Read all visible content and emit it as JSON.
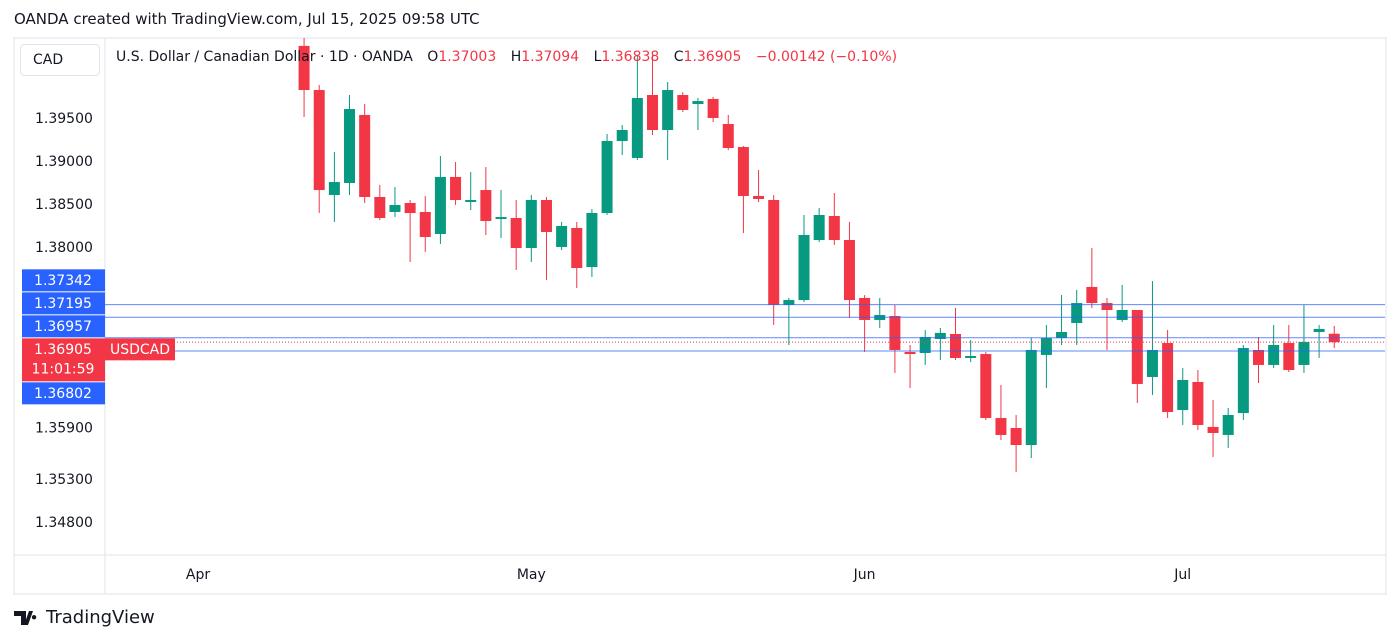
{
  "chart_data": {
    "type": "candlestick",
    "attribution": "OANDA created with TradingView.com, Jul 15, 2025 09:58 UTC",
    "currency": "CAD",
    "title": "U.S. Dollar / Canadian Dollar · 1D · OANDA",
    "ohlc_letters": [
      "O",
      "H",
      "L",
      "C"
    ],
    "change_label": "−0.00142 (−0.10%)",
    "countdown": "11:01:59",
    "brand": "TradingView",
    "up_color": "#089981",
    "down_color": "#f23645",
    "xlim": [
      -6.14,
      78.35
    ],
    "ylim": [
      1.3443,
      1.40442
    ],
    "xticks": [
      {
        "value": 0,
        "label": "Apr"
      },
      {
        "value": 22,
        "label": "May"
      },
      {
        "value": 44,
        "label": "Jun"
      },
      {
        "value": 65,
        "label": "Jul"
      }
    ],
    "yticks": [
      {
        "value": 1.395,
        "label": "1.39500"
      },
      {
        "value": 1.39,
        "label": "1.39000"
      },
      {
        "value": 1.385,
        "label": "1.38500"
      },
      {
        "value": 1.38,
        "label": "1.38000"
      },
      {
        "value": 1.359,
        "label": "1.35900"
      },
      {
        "value": 1.353,
        "label": "1.35300"
      },
      {
        "value": 1.348,
        "label": "1.34800"
      }
    ],
    "price_lines": [
      {
        "value": 1.37342,
        "color": "#2962ff"
      },
      {
        "value": 1.37195,
        "color": "#2962ff"
      },
      {
        "value": 1.36957,
        "color": "#2962ff"
      },
      {
        "value": 1.36802,
        "color": "#2962ff"
      }
    ],
    "series": [
      {
        "name": "USDCAD",
        "x": [
          7,
          8,
          9,
          10,
          11,
          12,
          13,
          14,
          15,
          16,
          17,
          18,
          19,
          20,
          21,
          22,
          23,
          24,
          25,
          26,
          27,
          28,
          29,
          30,
          31,
          32,
          33,
          34,
          35,
          36,
          37,
          38,
          39,
          40,
          41,
          42,
          43,
          44,
          45,
          46,
          47,
          48,
          49,
          50,
          51,
          52,
          53,
          54,
          55,
          56,
          57,
          58,
          59,
          60,
          61,
          62,
          63,
          64,
          65,
          66,
          67,
          68,
          69,
          70,
          71,
          72,
          73,
          74,
          75
        ],
        "open": [
          1.4035,
          1.39837,
          1.38616,
          1.38756,
          1.39547,
          1.38593,
          1.38419,
          1.38523,
          1.38419,
          1.38163,
          1.38826,
          1.38535,
          1.38674,
          1.38337,
          1.38349,
          1.38,
          1.38558,
          1.38012,
          1.38233,
          1.37779,
          1.38407,
          1.39244,
          1.39047,
          1.39779,
          1.39372,
          1.39779,
          1.39674,
          1.39733,
          1.39442,
          1.39174,
          1.38605,
          1.38558,
          1.37337,
          1.37395,
          1.38093,
          1.38372,
          1.38093,
          1.37419,
          1.37163,
          1.37209,
          1.36791,
          1.36779,
          1.36942,
          1.37,
          1.36721,
          1.36767,
          1.36023,
          1.35907,
          1.35709,
          1.36756,
          1.36953,
          1.37128,
          1.37547,
          1.3736,
          1.37163,
          1.37279,
          1.365,
          1.36895,
          1.36116,
          1.36442,
          1.35919,
          1.35826,
          1.36081,
          1.36814,
          1.3664,
          1.36895,
          1.3664,
          1.37023,
          1.37003
        ],
        "high": [
          1.406,
          1.39895,
          1.39116,
          1.39779,
          1.39674,
          1.38733,
          1.38709,
          1.38558,
          1.38605,
          1.3907,
          1.39,
          1.38884,
          1.38942,
          1.38674,
          1.38558,
          1.38616,
          1.38593,
          1.38302,
          1.38302,
          1.38453,
          1.39326,
          1.3943,
          1.40244,
          1.40244,
          1.3993,
          1.39814,
          1.39744,
          1.39756,
          1.39547,
          1.39186,
          1.38907,
          1.38616,
          1.37419,
          1.38384,
          1.38465,
          1.3864,
          1.38302,
          1.37453,
          1.37419,
          1.37337,
          1.36872,
          1.37047,
          1.3707,
          1.37302,
          1.3693,
          1.36791,
          1.36407,
          1.36058,
          1.36953,
          1.37105,
          1.37453,
          1.37512,
          1.38,
          1.37419,
          1.3757,
          1.37279,
          1.37616,
          1.37047,
          1.36605,
          1.36581,
          1.36233,
          1.3614,
          1.36872,
          1.36965,
          1.37105,
          1.37105,
          1.37337,
          1.37105,
          1.37094
        ],
        "low": [
          1.39523,
          1.38407,
          1.38302,
          1.38616,
          1.38523,
          1.38326,
          1.3836,
          1.37837,
          1.37953,
          1.38047,
          1.385,
          1.38442,
          1.38151,
          1.38116,
          1.37744,
          1.37837,
          1.37628,
          1.37977,
          1.37535,
          1.37663,
          1.38384,
          1.39081,
          1.39023,
          1.39314,
          1.39023,
          1.39581,
          1.39372,
          1.39465,
          1.3914,
          1.38174,
          1.38535,
          1.37105,
          1.36872,
          1.37372,
          1.3807,
          1.38035,
          1.37186,
          1.36791,
          1.3707,
          1.36547,
          1.36372,
          1.3664,
          1.36698,
          1.36698,
          1.36674,
          1.36,
          1.35767,
          1.35395,
          1.35558,
          1.36372,
          1.36872,
          1.36872,
          1.37302,
          1.36814,
          1.3714,
          1.36198,
          1.36291,
          1.36023,
          1.35942,
          1.35884,
          1.3557,
          1.35674,
          1.36,
          1.3643,
          1.36605,
          1.36558,
          1.36547,
          1.36721,
          1.36838
        ],
        "close": [
          1.39837,
          1.38674,
          1.38767,
          1.39616,
          1.38593,
          1.38349,
          1.385,
          1.38407,
          1.38128,
          1.38826,
          1.38558,
          1.38558,
          1.38314,
          1.3836,
          1.38,
          1.38558,
          1.38186,
          1.38256,
          1.37767,
          1.38407,
          1.39244,
          1.39372,
          1.39744,
          1.39372,
          1.39837,
          1.39605,
          1.39709,
          1.39512,
          1.39163,
          1.38605,
          1.3857,
          1.37337,
          1.37395,
          1.38151,
          1.38384,
          1.38093,
          1.37395,
          1.37163,
          1.37221,
          1.36814,
          1.36767,
          1.36965,
          1.37012,
          1.36721,
          1.36744,
          1.36023,
          1.35826,
          1.35709,
          1.36814,
          1.36953,
          1.37023,
          1.3736,
          1.3736,
          1.37279,
          1.37279,
          1.36419,
          1.36814,
          1.36093,
          1.36465,
          1.35942,
          1.35849,
          1.36058,
          1.36837,
          1.3664,
          1.36872,
          1.36581,
          1.36907,
          1.37058,
          1.36905
        ]
      }
    ]
  }
}
